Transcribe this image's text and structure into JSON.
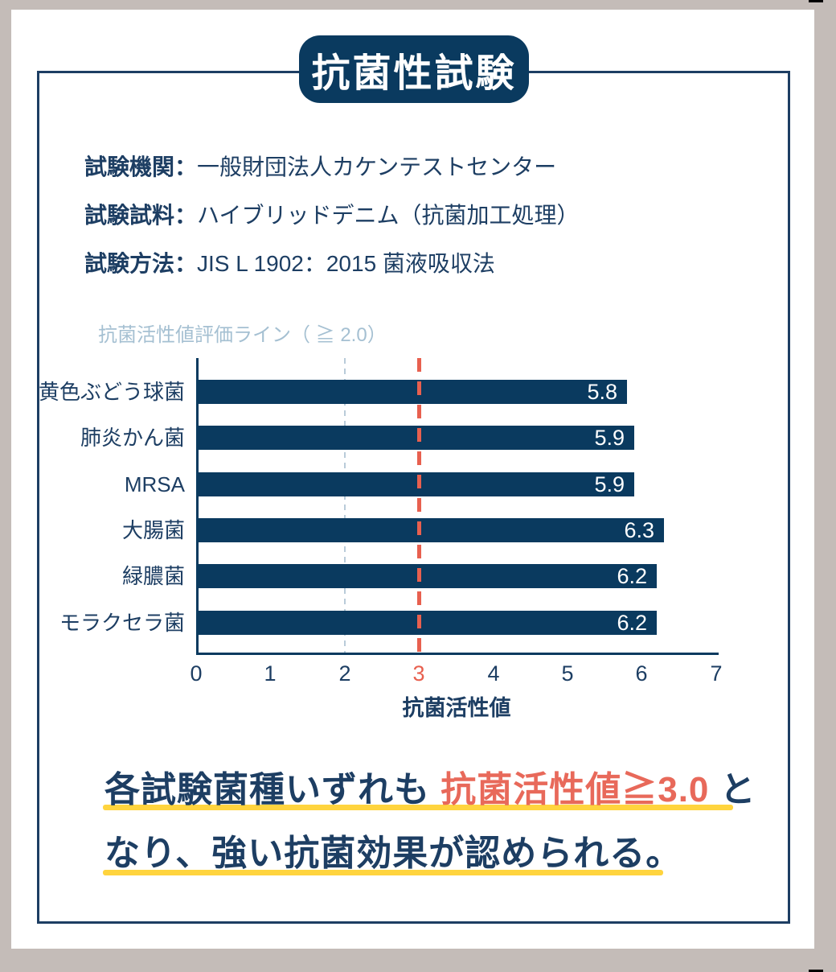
{
  "header": {
    "title": "抗菌性試験"
  },
  "test_info": [
    {
      "label": "試験機関：",
      "value": "一般財団法人カケンテストセンター"
    },
    {
      "label": "試験試料：",
      "value": "ハイブリッドデニム（抗菌加工処理）"
    },
    {
      "label": "試験方法：",
      "value": "JIS L 1902：2015 菌液吸収法"
    }
  ],
  "chart_data": {
    "type": "bar",
    "orientation": "horizontal",
    "annotation": "抗菌活性値評価ライン（ ≧ 2.0）",
    "categories": [
      "黄色ぶどう球菌",
      "肺炎かん菌",
      "MRSA",
      "大腸菌",
      "緑膿菌",
      "モラクセラ菌"
    ],
    "values": [
      5.8,
      5.9,
      5.9,
      6.3,
      6.2,
      6.2
    ],
    "xlabel": "抗菌活性値",
    "xlim": [
      0,
      7
    ],
    "xticks": [
      0,
      1,
      2,
      3,
      4,
      5,
      6,
      7
    ],
    "grid": false,
    "threshold_line": {
      "value": 2.0,
      "style": "dashed",
      "color": "#b9cbd9"
    },
    "highlight_line": {
      "value": 3.0,
      "style": "dashed",
      "color": "#e8604f"
    },
    "highlighted_tick": 3,
    "bar_color": "#0a3a5f",
    "value_label_color": "#ffffff"
  },
  "conclusion": {
    "line1_before": "各試験菌種いずれも ",
    "line1_highlight": "抗菌活性値≧3.0",
    "line1_after": " と",
    "line2": "なり、強い抗菌効果が認められる。"
  },
  "colors": {
    "background": "#c4bcb8",
    "card": "#ffffff",
    "navy": "#0a3a5f",
    "text_navy": "#1d3e63",
    "accent_red": "#e8604f",
    "highlight_red": "#e8695a",
    "underline_yellow": "#ffd43e",
    "muted_blue": "#a5c0d2",
    "grid_blue": "#b9cbd9"
  }
}
